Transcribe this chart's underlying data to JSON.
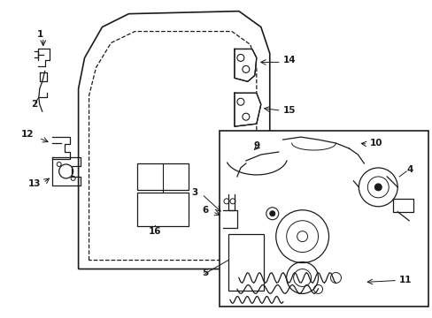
{
  "bg": "#ffffff",
  "lc": "#1a1a1a",
  "lw": 0.9,
  "fs": 7.5,
  "fig_w": 4.89,
  "fig_h": 3.6,
  "dpi": 100
}
